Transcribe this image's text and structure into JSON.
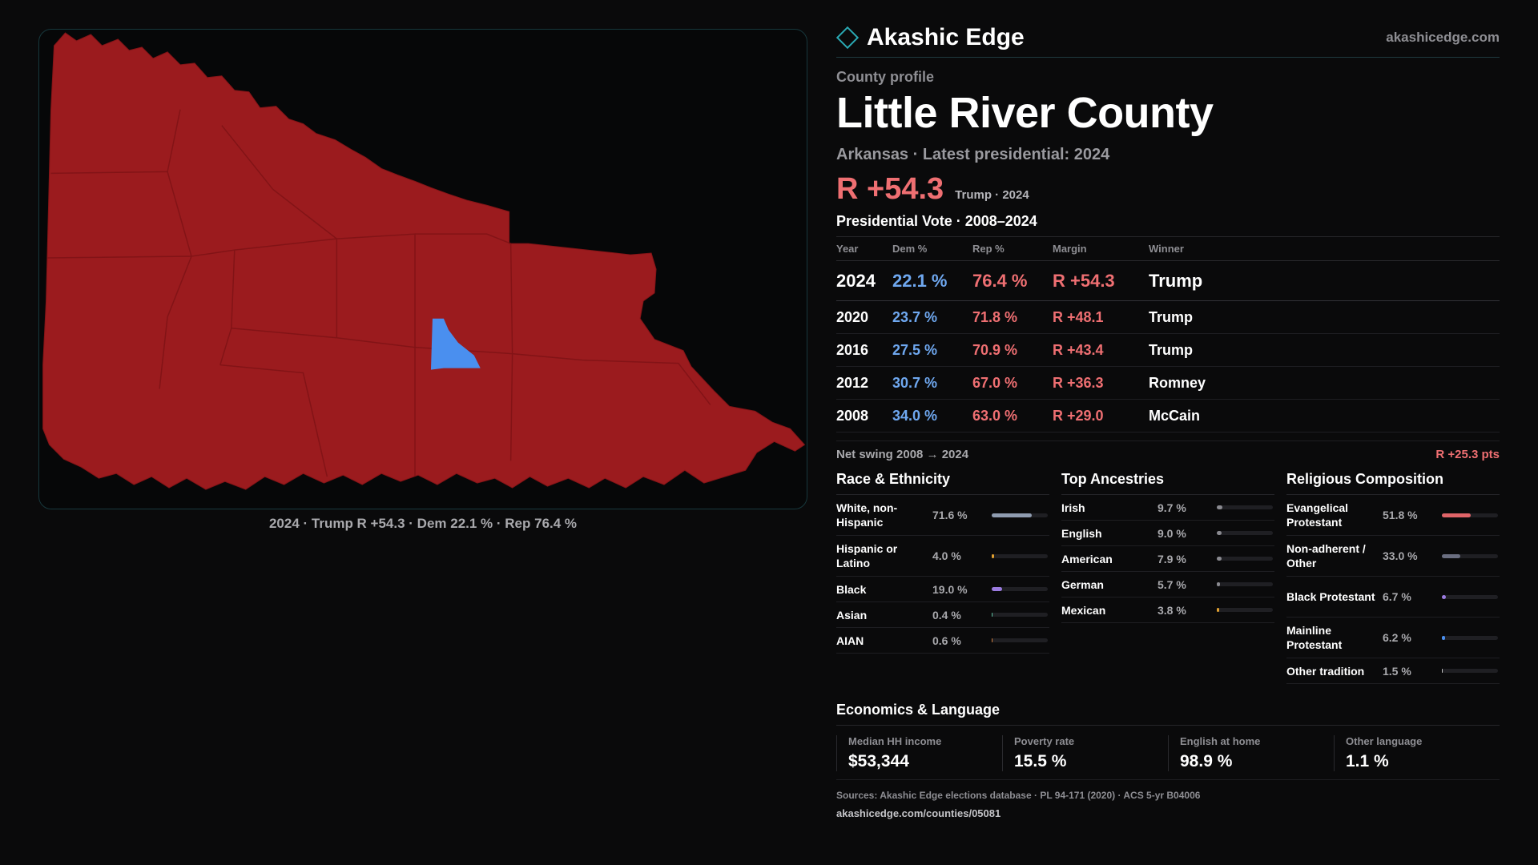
{
  "map": {
    "caption": "2024 · Trump R +54.3 · Dem 22.1 % · Rep 76.4 %",
    "fill_republican": "#9b1b1e",
    "fill_democrat": "#4a8fef",
    "boundary_color": "#841417"
  },
  "brand": {
    "name": "Akashic Edge",
    "url": "akashicedge.com",
    "accent": "#2aa9b3"
  },
  "profile": {
    "kicker": "County profile",
    "title": "Little River County",
    "subtitle": "Arkansas · Latest presidential: 2024",
    "headline_margin": "R +54.3",
    "headline_note": "Trump · 2024"
  },
  "vote": {
    "title": "Presidential Vote · 2008–2024",
    "headers": {
      "year": "Year",
      "dem": "Dem %",
      "rep": "Rep %",
      "margin": "Margin",
      "winner": "Winner"
    },
    "rows": [
      {
        "year": "2024",
        "dem": "22.1 %",
        "rep": "76.4 %",
        "margin": "R +54.3",
        "winner": "Trump"
      },
      {
        "year": "2020",
        "dem": "23.7 %",
        "rep": "71.8 %",
        "margin": "R +48.1",
        "winner": "Trump"
      },
      {
        "year": "2016",
        "dem": "27.5 %",
        "rep": "70.9 %",
        "margin": "R +43.4",
        "winner": "Trump"
      },
      {
        "year": "2012",
        "dem": "30.7 %",
        "rep": "67.0 %",
        "margin": "R +36.3",
        "winner": "Romney"
      },
      {
        "year": "2008",
        "dem": "34.0 %",
        "rep": "63.0 %",
        "margin": "R +29.0",
        "winner": "McCain"
      }
    ],
    "swing_label": "Net swing 2008 → 2024",
    "swing_value": "R +25.3 pts"
  },
  "race": {
    "title": "Race & Ethnicity",
    "items": [
      {
        "label": "White, non-Hispanic",
        "value": "71.6 %",
        "pct": 0.716,
        "color": "#8f9cb0"
      },
      {
        "label": "Hispanic or Latino",
        "value": "4.0 %",
        "pct": 0.04,
        "color": "#e0a030"
      },
      {
        "label": "Black",
        "value": "19.0 %",
        "pct": 0.19,
        "color": "#9b7be0"
      },
      {
        "label": "Asian",
        "value": "0.4 %",
        "pct": 0.004,
        "color": "#5cc0a0"
      },
      {
        "label": "AIAN",
        "value": "0.6 %",
        "pct": 0.006,
        "color": "#d08040"
      }
    ]
  },
  "ancestry": {
    "title": "Top Ancestries",
    "items": [
      {
        "label": "Irish",
        "value": "9.7 %",
        "pct": 0.097,
        "color": "#8a8a90"
      },
      {
        "label": "English",
        "value": "9.0 %",
        "pct": 0.09,
        "color": "#8a8a90"
      },
      {
        "label": "American",
        "value": "7.9 %",
        "pct": 0.079,
        "color": "#8a8a90"
      },
      {
        "label": "German",
        "value": "5.7 %",
        "pct": 0.057,
        "color": "#8a8a90"
      },
      {
        "label": "Mexican",
        "value": "3.8 %",
        "pct": 0.038,
        "color": "#e0a030"
      }
    ]
  },
  "religion": {
    "title": "Religious Composition",
    "items": [
      {
        "label": "Evangelical Protestant",
        "value": "51.8 %",
        "pct": 0.518,
        "color": "#e06468"
      },
      {
        "label": "Non-adherent / Other",
        "value": "33.0 %",
        "pct": 0.33,
        "color": "#6a6e80"
      },
      {
        "label": "Black Protestant",
        "value": "6.7 %",
        "pct": 0.067,
        "color": "#9b7be0"
      },
      {
        "label": "Mainline Protestant",
        "value": "6.2 %",
        "pct": 0.062,
        "color": "#4a8fef"
      },
      {
        "label": "Other tradition",
        "value": "1.5 %",
        "pct": 0.015,
        "color": "#c0c0c0"
      }
    ]
  },
  "economics": {
    "title": "Economics & Language",
    "items": [
      {
        "label": "Median HH income",
        "value": "$53,344"
      },
      {
        "label": "Poverty rate",
        "value": "15.5 %"
      },
      {
        "label": "English at home",
        "value": "98.9 %"
      },
      {
        "label": "Other language",
        "value": "1.1 %"
      }
    ]
  },
  "footer": {
    "sources": "Sources: Akashic Edge elections database · PL 94-171 (2020) · ACS 5-yr B04006",
    "url": "akashicedge.com/counties/05081"
  }
}
